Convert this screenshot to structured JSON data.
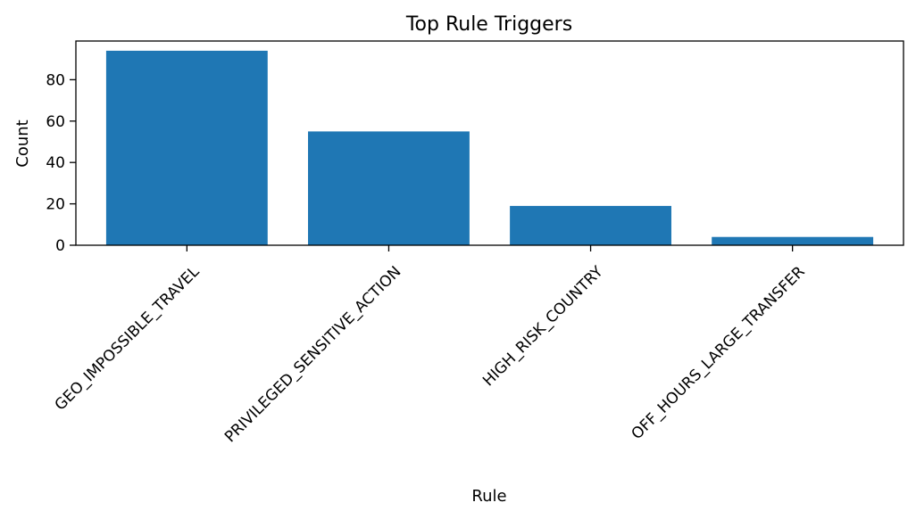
{
  "chart_data": {
    "type": "bar",
    "title": "Top Rule Triggers",
    "xlabel": "Rule",
    "ylabel": "Count",
    "categories": [
      "GEO_IMPOSSIBLE_TRAVEL",
      "PRIVILEGED_SENSITIVE_ACTION",
      "HIGH_RISK_COUNTRY",
      "OFF_HOURS_LARGE_TRANSFER"
    ],
    "values": [
      94,
      55,
      19,
      4
    ],
    "ylim": [
      0,
      98.7
    ],
    "yticks": [
      0,
      20,
      40,
      60,
      80
    ],
    "bar_color": "#1f77b4",
    "grid": false,
    "legend": "none"
  }
}
